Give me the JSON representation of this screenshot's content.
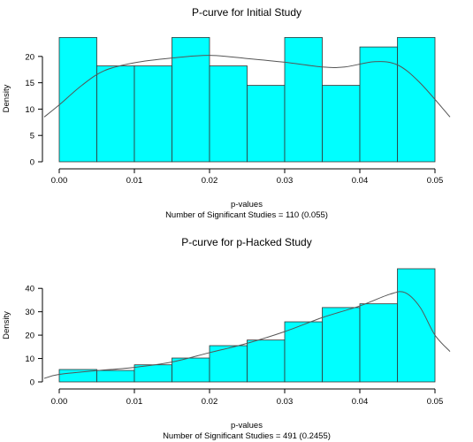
{
  "chart_data": [
    {
      "type": "bar",
      "title": "P-curve for Initial Study",
      "xlabel": "p-values",
      "subtitle": "Number of Significant Studies = 110 (0.055)",
      "ylabel": "Density",
      "bin_edges": [
        0,
        0.005,
        0.01,
        0.015,
        0.02,
        0.025,
        0.03,
        0.035,
        0.04,
        0.045,
        0.05
      ],
      "values": [
        23.6,
        18.2,
        18.2,
        23.6,
        18.2,
        14.5,
        23.6,
        14.5,
        21.8,
        23.6
      ],
      "density_curve": {
        "x": [
          -0.002,
          0.0,
          0.003,
          0.006,
          0.01,
          0.015,
          0.02,
          0.025,
          0.03,
          0.035,
          0.038,
          0.042,
          0.045,
          0.048,
          0.052
        ],
        "y": [
          8.5,
          10.8,
          14.5,
          17.3,
          18.8,
          19.7,
          20.2,
          19.6,
          18.9,
          18.0,
          18.0,
          19.0,
          18.4,
          15.0,
          8.5
        ]
      },
      "xticks": [
        "0.00",
        "0.01",
        "0.02",
        "0.03",
        "0.04",
        "0.05"
      ],
      "yticks": [
        "0",
        "5",
        "10",
        "15",
        "20"
      ],
      "xlim": [
        0,
        0.05
      ],
      "ylim": [
        0,
        24
      ]
    },
    {
      "type": "bar",
      "title": "P-curve for p-Hacked Study",
      "xlabel": "p-values",
      "subtitle": "Number of Significant Studies = 491 (0.2455)",
      "ylabel": "Density",
      "bin_edges": [
        0,
        0.005,
        0.01,
        0.015,
        0.02,
        0.025,
        0.03,
        0.035,
        0.04,
        0.045,
        0.05
      ],
      "values": [
        5.3,
        4.9,
        7.3,
        10.2,
        15.5,
        17.9,
        25.7,
        31.8,
        33.4,
        48.4
      ],
      "density_curve": {
        "x": [
          -0.002,
          0.0,
          0.005,
          0.01,
          0.015,
          0.02,
          0.025,
          0.03,
          0.035,
          0.04,
          0.044,
          0.046,
          0.048,
          0.05,
          0.052
        ],
        "y": [
          1.5,
          3.2,
          4.8,
          6.2,
          8.5,
          12.5,
          16.5,
          21.5,
          27.5,
          32.5,
          37.5,
          38.2,
          32.0,
          20.0,
          13.0
        ]
      },
      "xticks": [
        "0.00",
        "0.01",
        "0.02",
        "0.03",
        "0.04",
        "0.05"
      ],
      "yticks": [
        "0",
        "10",
        "20",
        "30",
        "40"
      ],
      "xlim": [
        0,
        0.05
      ],
      "ylim": [
        0,
        48.4
      ]
    }
  ]
}
